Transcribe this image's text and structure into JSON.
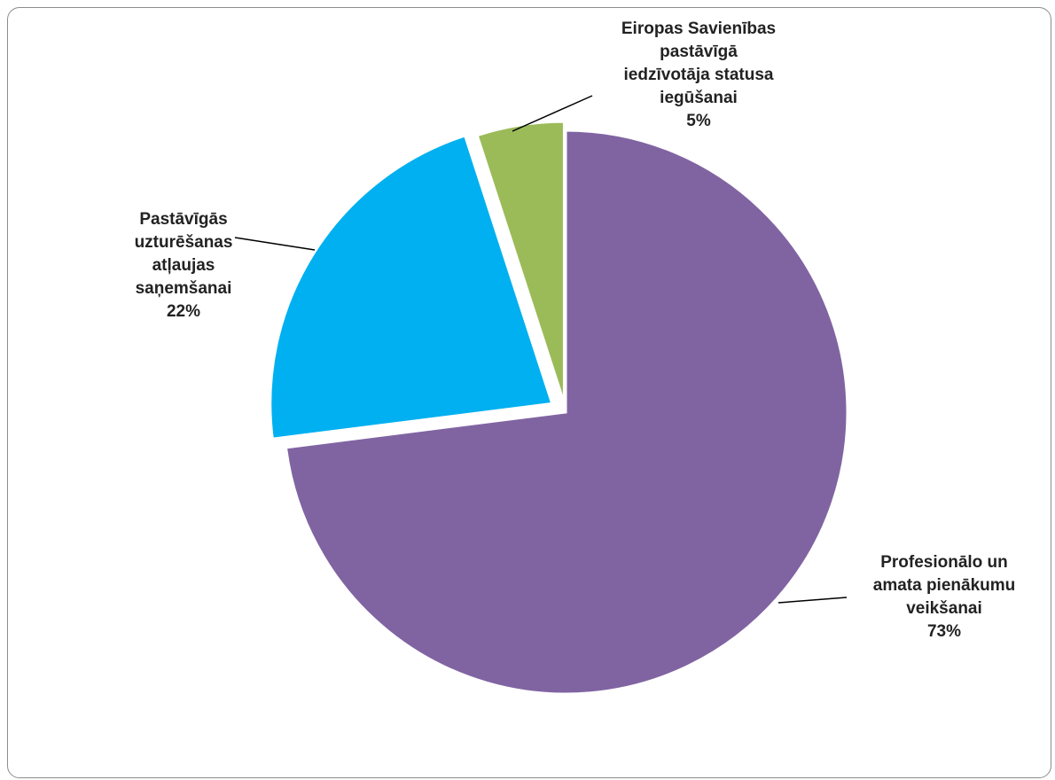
{
  "chart_data": {
    "type": "pie",
    "title": "",
    "slices": [
      {
        "label_lines": [
          "Profesionālo un",
          "amata pienākumu",
          "veikšanai"
        ],
        "value": 73,
        "value_label": "73%",
        "color": "#8064A2"
      },
      {
        "label_lines": [
          "Pastāvīgās",
          "uzturēšanas",
          "atļaujas",
          "saņemšanai"
        ],
        "value": 22,
        "value_label": "22%",
        "color": "#00B0F0"
      },
      {
        "label_lines": [
          "Eiropas Savienības",
          "pastāvīgā",
          "iedzīvotāja statusa",
          "iegūšanai"
        ],
        "value": 5,
        "value_label": "5%",
        "color": "#9BBB59"
      }
    ],
    "start_angle_deg": 0,
    "direction": "clockwise",
    "legend": "none",
    "data_labels": "outside-with-leader-lines"
  }
}
